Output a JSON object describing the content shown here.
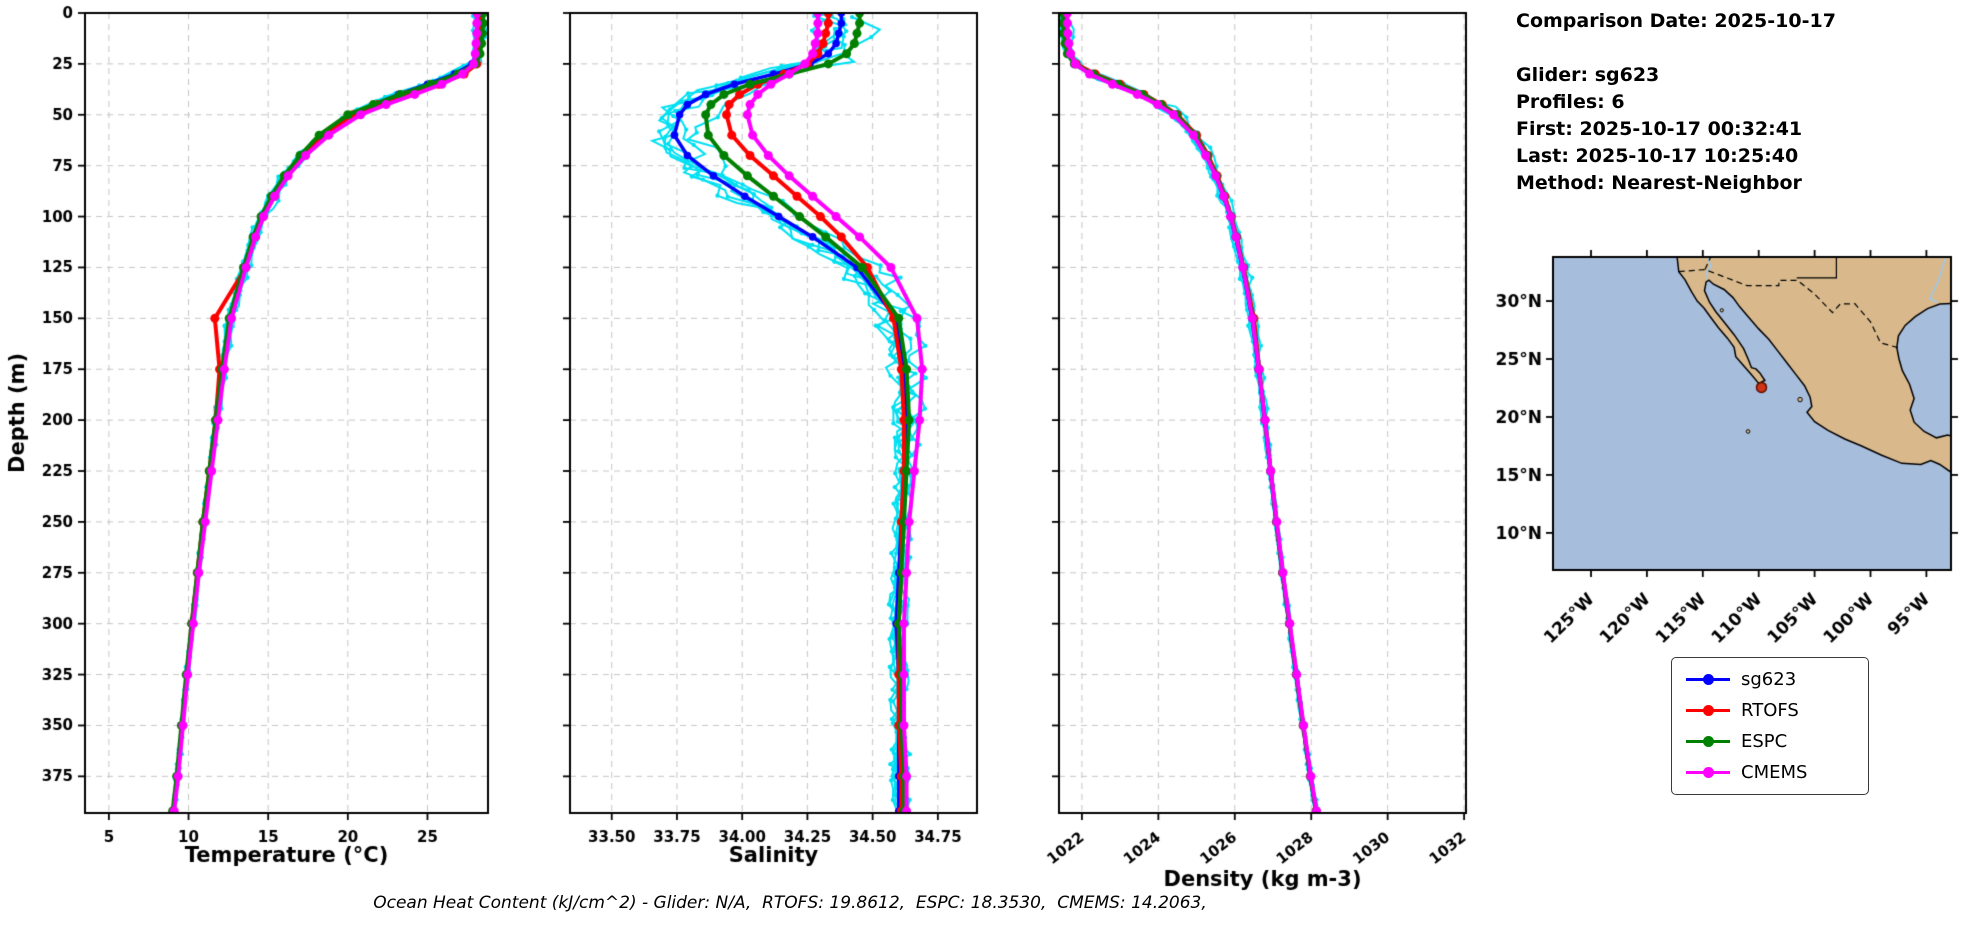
{
  "info": {
    "comparison_date": "Comparison Date: 2025-10-17",
    "glider": "Glider: sg623",
    "profiles": "Profiles: 6",
    "first": "First: 2025-10-17 00:32:41",
    "last": "Last: 2025-10-17 10:25:40",
    "method": "Method: Nearest-Neighbor"
  },
  "footer": {
    "text": "Ocean Heat Content (kJ/cm^2) - Glider: N/A,  RTOFS: 19.8612,  ESPC: 18.3530,  CMEMS: 14.2063,"
  },
  "legend": [
    {
      "label": "sg623",
      "color": "#0000ff"
    },
    {
      "label": "RTOFS",
      "color": "#ff0000"
    },
    {
      "label": "ESPC",
      "color": "#008000"
    },
    {
      "label": "CMEMS",
      "color": "#ff00ff"
    }
  ],
  "chart_data": [
    {
      "type": "line",
      "xlabel": "Temperature (°C)",
      "ylabel": "Depth (m)",
      "xlim": [
        3.5,
        28.8
      ],
      "ylim": [
        0,
        393
      ],
      "xticks": [
        5,
        10,
        15,
        20,
        25
      ],
      "xtick_labels": [
        "5",
        "10",
        "15",
        "20",
        "25"
      ],
      "yticks": [
        0,
        25,
        50,
        75,
        100,
        125,
        150,
        175,
        200,
        225,
        250,
        275,
        300,
        325,
        350,
        375
      ],
      "ytick_labels": [
        "0",
        "25",
        "50",
        "75",
        "100",
        "125",
        "150",
        "175",
        "200",
        "225",
        "250",
        "275",
        "300",
        "325",
        "350",
        "375"
      ],
      "grid": "dashed",
      "depths": [
        0,
        5,
        10,
        15,
        20,
        25,
        30,
        35,
        40,
        45,
        50,
        60,
        70,
        80,
        90,
        100,
        110,
        125,
        150,
        175,
        200,
        225,
        250,
        275,
        300,
        325,
        350,
        375,
        392
      ],
      "raw": {
        "name": "glider-raw",
        "color": "#00e0f2",
        "profiles": 6,
        "x_jitter": 0.4
      },
      "series": [
        {
          "name": "sg623",
          "color": "#0000ff",
          "values": [
            28.2,
            28.2,
            28.2,
            28.15,
            28.1,
            27.8,
            26.7,
            25.0,
            23.2,
            21.6,
            20.2,
            18.4,
            17.1,
            16.1,
            15.3,
            14.6,
            14.1,
            13.5,
            12.6,
            12.15,
            11.75,
            11.35,
            10.95,
            10.6,
            10.25,
            9.9,
            9.6,
            9.3,
            9.05
          ]
        },
        {
          "name": "RTOFS",
          "color": "#ff0000",
          "values": [
            28.35,
            28.35,
            28.3,
            28.3,
            28.25,
            28.1,
            27.3,
            25.7,
            23.7,
            21.9,
            20.3,
            18.5,
            17.2,
            16.2,
            15.4,
            14.7,
            14.2,
            13.6,
            11.65,
            11.95,
            11.7,
            11.3,
            10.9,
            10.55,
            10.2,
            9.9,
            9.6,
            9.3,
            9.05
          ]
        },
        {
          "name": "ESPC",
          "color": "#008000",
          "values": [
            28.5,
            28.5,
            28.45,
            28.4,
            28.3,
            28.0,
            26.9,
            25.2,
            23.3,
            21.6,
            20.0,
            18.2,
            17.0,
            16.0,
            15.2,
            14.55,
            14.05,
            13.45,
            12.55,
            12.1,
            11.7,
            11.3,
            10.9,
            10.55,
            10.2,
            9.85,
            9.55,
            9.25,
            9.0
          ]
        },
        {
          "name": "CMEMS",
          "color": "#ff00ff",
          "values": [
            28.1,
            28.1,
            28.1,
            28.05,
            28.0,
            27.9,
            27.2,
            25.9,
            24.2,
            22.4,
            20.8,
            18.8,
            17.35,
            16.25,
            15.4,
            14.7,
            14.2,
            13.6,
            12.7,
            12.25,
            11.85,
            11.45,
            11.05,
            10.65,
            10.3,
            9.95,
            9.65,
            9.35,
            9.1
          ]
        }
      ]
    },
    {
      "type": "line",
      "xlabel": "Salinity",
      "ylabel": "Depth (m)",
      "xlim": [
        33.34,
        34.9
      ],
      "ylim": [
        0,
        393
      ],
      "xticks": [
        33.5,
        33.75,
        34.0,
        34.25,
        34.5,
        34.75
      ],
      "xtick_labels": [
        "33.50",
        "33.75",
        "34.00",
        "34.25",
        "34.50",
        "34.75"
      ],
      "yticks": [
        0,
        25,
        50,
        75,
        100,
        125,
        150,
        175,
        200,
        225,
        250,
        275,
        300,
        325,
        350,
        375
      ],
      "ytick_labels": [
        "0",
        "25",
        "50",
        "75",
        "100",
        "125",
        "150",
        "175",
        "200",
        "225",
        "250",
        "275",
        "300",
        "325",
        "350",
        "375"
      ],
      "grid": "dashed",
      "depths": [
        0,
        5,
        10,
        15,
        20,
        25,
        30,
        35,
        40,
        45,
        50,
        60,
        70,
        80,
        90,
        100,
        110,
        125,
        150,
        175,
        200,
        225,
        250,
        275,
        300,
        325,
        350,
        375,
        392
      ],
      "raw": {
        "name": "glider-raw",
        "color": "#00e0f2",
        "profiles": 6,
        "x_jitter": 0.12
      },
      "series": [
        {
          "name": "sg623",
          "color": "#0000ff",
          "values": [
            34.38,
            34.38,
            34.37,
            34.36,
            34.33,
            34.26,
            34.12,
            33.97,
            33.86,
            33.79,
            33.76,
            33.74,
            33.79,
            33.89,
            34.01,
            34.14,
            34.27,
            34.44,
            34.59,
            34.62,
            34.63,
            34.62,
            34.61,
            34.6,
            34.59,
            34.6,
            34.6,
            34.6,
            34.6
          ]
        },
        {
          "name": "RTOFS",
          "color": "#ff0000",
          "values": [
            34.33,
            34.33,
            34.32,
            34.31,
            34.29,
            34.25,
            34.16,
            34.06,
            33.99,
            33.95,
            33.94,
            33.96,
            34.03,
            34.12,
            34.21,
            34.3,
            34.38,
            34.48,
            34.58,
            34.61,
            34.62,
            34.62,
            34.61,
            34.61,
            34.6,
            34.6,
            34.6,
            34.61,
            34.61
          ]
        },
        {
          "name": "ESPC",
          "color": "#008000",
          "values": [
            34.45,
            34.45,
            34.44,
            34.43,
            34.4,
            34.33,
            34.18,
            34.03,
            33.93,
            33.88,
            33.86,
            33.87,
            33.93,
            34.02,
            34.12,
            34.22,
            34.32,
            34.46,
            34.6,
            34.63,
            34.64,
            34.63,
            34.62,
            34.61,
            34.6,
            34.61,
            34.61,
            34.62,
            34.62
          ]
        },
        {
          "name": "CMEMS",
          "color": "#ff00ff",
          "values": [
            34.29,
            34.29,
            34.29,
            34.28,
            34.27,
            34.24,
            34.18,
            34.11,
            34.06,
            34.03,
            34.02,
            34.04,
            34.1,
            34.18,
            34.27,
            34.36,
            34.45,
            34.57,
            34.67,
            34.69,
            34.68,
            34.66,
            34.64,
            34.63,
            34.62,
            34.62,
            34.62,
            34.63,
            34.63
          ]
        }
      ]
    },
    {
      "type": "line",
      "xlabel": "Density (kg m-3)",
      "ylabel": "Depth (m)",
      "xlim": [
        1021.4,
        1032.05
      ],
      "ylim": [
        0,
        393
      ],
      "xticks": [
        1022,
        1024,
        1026,
        1028,
        1030,
        1032
      ],
      "xtick_labels": [
        "1022",
        "1024",
        "1026",
        "1028",
        "1030",
        "1032"
      ],
      "rotate_xtick_labels": true,
      "yticks": [
        0,
        25,
        50,
        75,
        100,
        125,
        150,
        175,
        200,
        225,
        250,
        275,
        300,
        325,
        350,
        375
      ],
      "ytick_labels": [
        "0",
        "25",
        "50",
        "75",
        "100",
        "125",
        "150",
        "175",
        "200",
        "225",
        "250",
        "275",
        "300",
        "325",
        "350",
        "375"
      ],
      "grid": "dashed",
      "depths": [
        0,
        5,
        10,
        15,
        20,
        25,
        30,
        35,
        40,
        45,
        50,
        60,
        70,
        80,
        90,
        100,
        110,
        125,
        150,
        175,
        200,
        225,
        250,
        275,
        300,
        325,
        350,
        375,
        392
      ],
      "raw": {
        "name": "glider-raw",
        "color": "#00e0f2",
        "profiles": 6,
        "x_jitter": 0.18
      },
      "series": [
        {
          "name": "sg623",
          "color": "#0000ff",
          "values": [
            1021.55,
            1021.55,
            1021.57,
            1021.6,
            1021.65,
            1021.8,
            1022.25,
            1022.9,
            1023.55,
            1024.05,
            1024.45,
            1024.95,
            1025.25,
            1025.5,
            1025.7,
            1025.88,
            1026.02,
            1026.2,
            1026.45,
            1026.62,
            1026.78,
            1026.93,
            1027.08,
            1027.24,
            1027.42,
            1027.6,
            1027.78,
            1027.97,
            1028.12
          ]
        },
        {
          "name": "RTOFS",
          "color": "#ff0000",
          "values": [
            1021.6,
            1021.6,
            1021.62,
            1021.65,
            1021.7,
            1021.85,
            1022.35,
            1023.0,
            1023.62,
            1024.1,
            1024.5,
            1025.0,
            1025.3,
            1025.54,
            1025.74,
            1025.91,
            1026.05,
            1026.23,
            1026.5,
            1026.64,
            1026.79,
            1026.94,
            1027.09,
            1027.25,
            1027.43,
            1027.61,
            1027.79,
            1027.98,
            1028.13
          ]
        },
        {
          "name": "ESPC",
          "color": "#008000",
          "values": [
            1021.5,
            1021.5,
            1021.52,
            1021.56,
            1021.62,
            1021.8,
            1022.3,
            1022.95,
            1023.58,
            1024.07,
            1024.47,
            1024.97,
            1025.27,
            1025.52,
            1025.72,
            1025.9,
            1026.04,
            1026.22,
            1026.47,
            1026.63,
            1026.79,
            1026.94,
            1027.09,
            1027.25,
            1027.43,
            1027.61,
            1027.79,
            1027.98,
            1028.13
          ]
        },
        {
          "name": "CMEMS",
          "color": "#ff00ff",
          "values": [
            1021.62,
            1021.62,
            1021.63,
            1021.66,
            1021.7,
            1021.82,
            1022.2,
            1022.8,
            1023.45,
            1023.98,
            1024.4,
            1024.92,
            1025.24,
            1025.5,
            1025.71,
            1025.89,
            1026.03,
            1026.21,
            1026.46,
            1026.63,
            1026.79,
            1026.94,
            1027.1,
            1027.26,
            1027.44,
            1027.62,
            1027.8,
            1027.99,
            1028.14
          ]
        }
      ]
    }
  ],
  "map": {
    "xticks": [
      -125,
      -120,
      -115,
      -110,
      -105,
      -100,
      -95
    ],
    "xtick_labels": [
      "125°W",
      "120°W",
      "115°W",
      "110°W",
      "105°W",
      "100°W",
      "95°W"
    ],
    "yticks": [
      10,
      15,
      20,
      25,
      30
    ],
    "ytick_labels": [
      "10°N",
      "15°N",
      "20°N",
      "25°N",
      "30°N"
    ],
    "lon_range": [
      -128.4,
      -92.8
    ],
    "lat_range": [
      6.8,
      33.8
    ],
    "ocean_color": "#a7bddc",
    "land_color": "#d9b98c",
    "marker": {
      "lon": -109.75,
      "lat": 22.55,
      "color": "#cf3418"
    }
  }
}
